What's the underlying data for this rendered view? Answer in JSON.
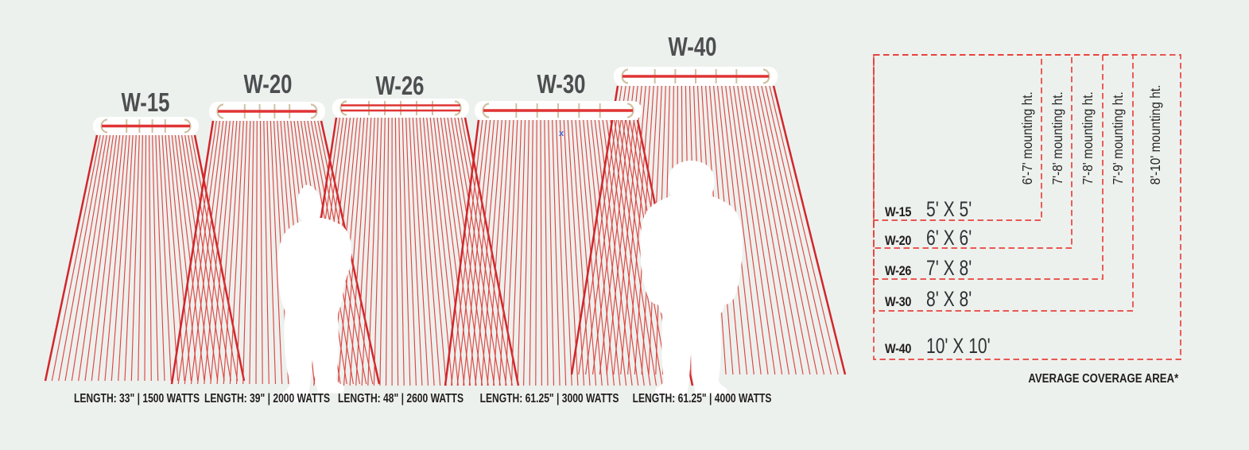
{
  "colors": {
    "background": "#edf1ee",
    "ray_red": "#dd3c39",
    "edge_red": "#d2262b",
    "element_red": "#e03434",
    "bracket_tan": "#cfc1a2",
    "dashed_red": "#e8433d",
    "model_gray": "#4d4e50",
    "ink": "#211e1f",
    "silhouette_white": "#ffffff"
  },
  "heaters": [
    {
      "model": "W-15",
      "spec": "LENGTH: 33\" | 1500 WATTS"
    },
    {
      "model": "W-20",
      "spec": "LENGTH: 39\" | 2000 WATTS"
    },
    {
      "model": "W-26",
      "spec": "LENGTH: 48\" | 2600 WATTS"
    },
    {
      "model": "W-30",
      "spec": "LENGTH: 61.25\" | 3000 WATTS"
    },
    {
      "model": "W-40",
      "spec": "LENGTH: 61.25\" | 4000 WATTS"
    }
  ],
  "coverage": {
    "rows": [
      {
        "model": "W-15",
        "area": "5' X 5'",
        "mounting": "6'-7' mounting ht."
      },
      {
        "model": "W-20",
        "area": "6' X 6'",
        "mounting": "7'-8' mounting ht."
      },
      {
        "model": "W-26",
        "area": "7' X 8'",
        "mounting": "7'-8' mounting ht."
      },
      {
        "model": "W-30",
        "area": "8' X 8'",
        "mounting": "7'-9' mounting ht."
      },
      {
        "model": "W-40",
        "area": "10' X 10'",
        "mounting": "8'-10' mounting ht."
      }
    ],
    "footnote": "AVERAGE COVERAGE AREA*"
  },
  "artifact": {
    "mark": "x"
  }
}
